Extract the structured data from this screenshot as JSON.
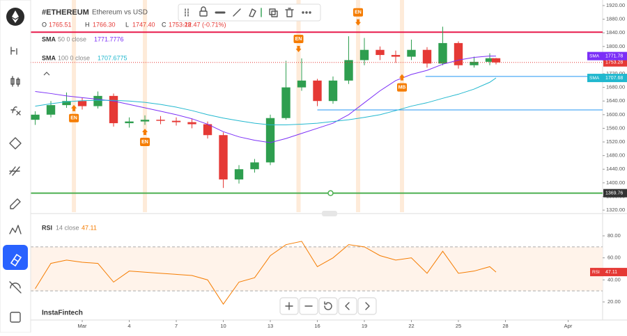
{
  "header": {
    "symbol": "#ETHEREUM",
    "name": "Ethereum vs USD",
    "ohlc": [
      {
        "key": "O",
        "text": "1765.51"
      },
      {
        "key": "H",
        "text": "1766.30"
      },
      {
        "key": "L",
        "text": "1747.40"
      },
      {
        "key": "C",
        "text": "1753.28"
      }
    ],
    "change": "-12.47 (-0.71%)",
    "brand": "InstaFintech"
  },
  "chart_data": [
    {
      "type": "candlestick",
      "x": [
        -2,
        -1,
        0,
        1,
        2,
        3,
        4,
        5,
        6,
        7,
        8,
        9,
        10,
        11,
        12,
        13,
        14,
        15,
        16,
        17,
        18,
        19,
        20,
        21,
        22,
        23,
        24,
        25,
        26,
        27,
        27.4
      ],
      "open": [
        1585,
        1600,
        1628,
        1640,
        1625,
        1655,
        1575,
        1580,
        1585,
        1582,
        1578,
        1572,
        1540,
        1410,
        1440,
        1460,
        1590,
        1680,
        1700,
        1640,
        1700,
        1760,
        1790,
        1775,
        1770,
        1790,
        1750,
        1810,
        1745,
        1755,
        1765.51
      ],
      "high": [
        1610,
        1640,
        1665,
        1650,
        1668,
        1662,
        1592,
        1598,
        1596,
        1592,
        1588,
        1580,
        1548,
        1452,
        1470,
        1600,
        1758,
        1765,
        1705,
        1712,
        1830,
        1825,
        1800,
        1788,
        1820,
        1798,
        1858,
        1815,
        1770,
        1780,
        1766.3
      ],
      "low": [
        1570,
        1592,
        1620,
        1615,
        1618,
        1565,
        1562,
        1570,
        1572,
        1568,
        1560,
        1530,
        1385,
        1398,
        1430,
        1452,
        1585,
        1670,
        1625,
        1632,
        1690,
        1745,
        1760,
        1752,
        1760,
        1738,
        1745,
        1735,
        1738,
        1745,
        1747.4
      ],
      "close": [
        1600,
        1628,
        1640,
        1625,
        1655,
        1575,
        1580,
        1585,
        1582,
        1578,
        1572,
        1540,
        1410,
        1440,
        1460,
        1590,
        1680,
        1700,
        1640,
        1700,
        1760,
        1790,
        1775,
        1770,
        1790,
        1750,
        1810,
        1745,
        1755,
        1765.51,
        1753.28
      ],
      "up_color": "#2e9e4f",
      "down_color": "#e53935",
      "series": [
        {
          "name": "SMA",
          "params": "50 0 close",
          "legend_value": 1771.7776,
          "last_label": "1771.78",
          "color": "#7b2ff7",
          "values": [
            1668,
            1662,
            1655,
            1650,
            1645,
            1640,
            1630,
            1620,
            1610,
            1600,
            1588,
            1572,
            1550,
            1535,
            1525,
            1518,
            1530,
            1545,
            1560,
            1575,
            1600,
            1635,
            1670,
            1700,
            1718,
            1730,
            1748,
            1760,
            1768,
            1772,
            1771.7776
          ]
        },
        {
          "name": "SMA",
          "params": "100 0 close",
          "legend_value": 1707.6775,
          "last_label": "1707.68",
          "color": "#22b8cf",
          "values": [
            1625,
            1632,
            1638,
            1641,
            1642,
            1642,
            1640,
            1636,
            1630,
            1622,
            1612,
            1600,
            1590,
            1582,
            1575,
            1570,
            1570,
            1572,
            1575,
            1580,
            1585,
            1592,
            1600,
            1612,
            1625,
            1635,
            1648,
            1660,
            1675,
            1695,
            1707.6775
          ]
        }
      ],
      "levels": [
        {
          "value": 1842,
          "color": "#e8194a"
        },
        {
          "value": 1614,
          "color": "#2196f3",
          "from": 16
        },
        {
          "value": 1712,
          "color": "#2196f3",
          "from": 22.9
        },
        {
          "value": 1369.76,
          "color": "#4caf50",
          "tag": true
        }
      ],
      "markers": [
        {
          "x": 0.47,
          "label": "EN",
          "dir": "up",
          "y": 1590
        },
        {
          "x": 5,
          "label": "EN",
          "dir": "up",
          "y": 1520
        },
        {
          "x": 14.8,
          "label": "EN",
          "dir": "down",
          "y": 1822
        },
        {
          "x": 18.6,
          "label": "EN",
          "dir": "down",
          "y": 1900
        },
        {
          "x": 21.4,
          "label": "MB",
          "dir": "up",
          "y": 1680
        }
      ],
      "marker_color": "#f57c00",
      "xlim": [
        -2.29,
        34.2
      ],
      "ylim": [
        1314,
        1936.3
      ],
      "yticks": [
        {
          "value": 1920,
          "label": "1920.00"
        },
        {
          "value": 1880,
          "label": "1880.00"
        },
        {
          "value": 1840,
          "label": "1840.00"
        },
        {
          "value": 1800,
          "label": "1800.00"
        },
        {
          "value": 1760,
          "label": "1760.00"
        },
        {
          "value": 1720,
          "label": "1720.00"
        },
        {
          "value": 1680,
          "label": "1680.00"
        },
        {
          "value": 1640,
          "label": "1640.00"
        },
        {
          "value": 1600,
          "label": "1600.00"
        },
        {
          "value": 1560,
          "label": "1560.00"
        },
        {
          "value": 1520,
          "label": "1520.00"
        },
        {
          "value": 1480,
          "label": "1480.00"
        },
        {
          "value": 1440,
          "label": "1440.00"
        },
        {
          "value": 1400,
          "label": "1400.00"
        },
        {
          "value": 1360,
          "label": "1360.00"
        },
        {
          "value": 1320,
          "label": "1320.00"
        }
      ],
      "xticks": [
        {
          "value": 1,
          "label": "Mar"
        },
        4,
        7,
        10,
        13,
        16,
        19,
        22,
        25,
        28,
        {
          "value": 32,
          "label": "Apr"
        }
      ]
    },
    {
      "type": "line",
      "name": "RSI",
      "params": "14 close",
      "color": "#f57c00",
      "x": [
        -2,
        -1,
        0,
        1,
        2,
        3,
        4,
        5,
        6,
        7,
        8,
        9,
        10,
        11,
        12,
        13,
        14,
        15,
        16,
        17,
        18,
        19,
        20,
        21,
        22,
        23,
        24,
        25,
        26,
        27,
        27.4
      ],
      "values": [
        32,
        55,
        58,
        56,
        55,
        38,
        48,
        47,
        46,
        45,
        44,
        40,
        18,
        38,
        42,
        62,
        72,
        75,
        52,
        60,
        72,
        70,
        62,
        58,
        60,
        46,
        66,
        46,
        48,
        52,
        47.11
      ],
      "band": [
        30,
        70
      ],
      "xlim": [
        -2.29,
        34.2
      ],
      "ylim": [
        3.6,
        98.3
      ],
      "yticks": [
        {
          "value": 80,
          "label": "80.00"
        },
        {
          "value": 60,
          "label": "60.00"
        },
        {
          "value": 40,
          "label": "40.00"
        },
        {
          "value": 20,
          "label": "20.00"
        }
      ]
    }
  ]
}
